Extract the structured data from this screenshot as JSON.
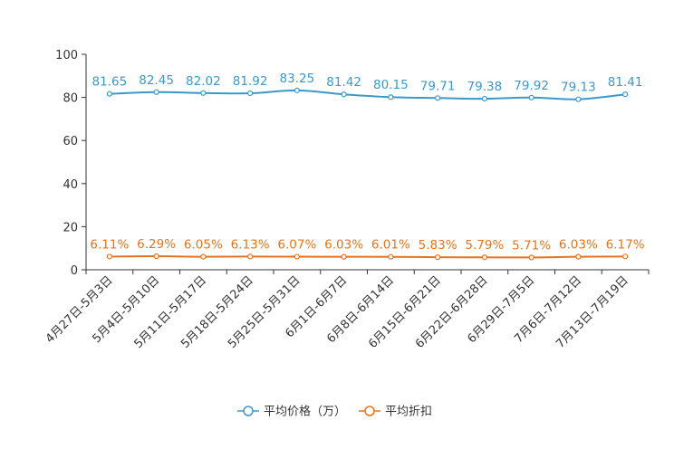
{
  "chart_data": {
    "type": "line",
    "title": "",
    "xlabel": "",
    "ylabel": "",
    "ylim": [
      0,
      100
    ],
    "yticks": [
      0,
      20,
      40,
      60,
      80,
      100
    ],
    "grid": false,
    "legend_position": "bottom-center",
    "categories": [
      "4月27日-5月3日",
      "5月4日-5月10日",
      "5月11日-5月17日",
      "5月18日-5月24日",
      "5月25日-5月31日",
      "6月1日-6月7日",
      "6月8日-6月14日",
      "6月15日-6月21日",
      "6月22日-6月28日",
      "6月29日-7月5日",
      "7月6日-7月12日",
      "7月13日-7月19日"
    ],
    "series": [
      {
        "name": "平均价格（万）",
        "color": "#3a99c9",
        "values": [
          81.65,
          82.45,
          82.02,
          81.92,
          83.25,
          81.42,
          80.15,
          79.71,
          79.38,
          79.92,
          79.13,
          81.41
        ],
        "labels": [
          "81.65",
          "82.45",
          "82.02",
          "81.92",
          "83.25",
          "81.42",
          "80.15",
          "79.71",
          "79.38",
          "79.92",
          "79.13",
          "81.41"
        ]
      },
      {
        "name": "平均折扣",
        "color": "#e8731c",
        "values": [
          6.11,
          6.29,
          6.05,
          6.13,
          6.07,
          6.03,
          6.01,
          5.83,
          5.79,
          5.71,
          6.03,
          6.17
        ],
        "labels": [
          "6.11%",
          "6.29%",
          "6.05%",
          "6.13%",
          "6.07%",
          "6.03%",
          "6.01%",
          "5.83%",
          "5.79%",
          "5.71%",
          "6.03%",
          "6.17%"
        ]
      }
    ]
  }
}
